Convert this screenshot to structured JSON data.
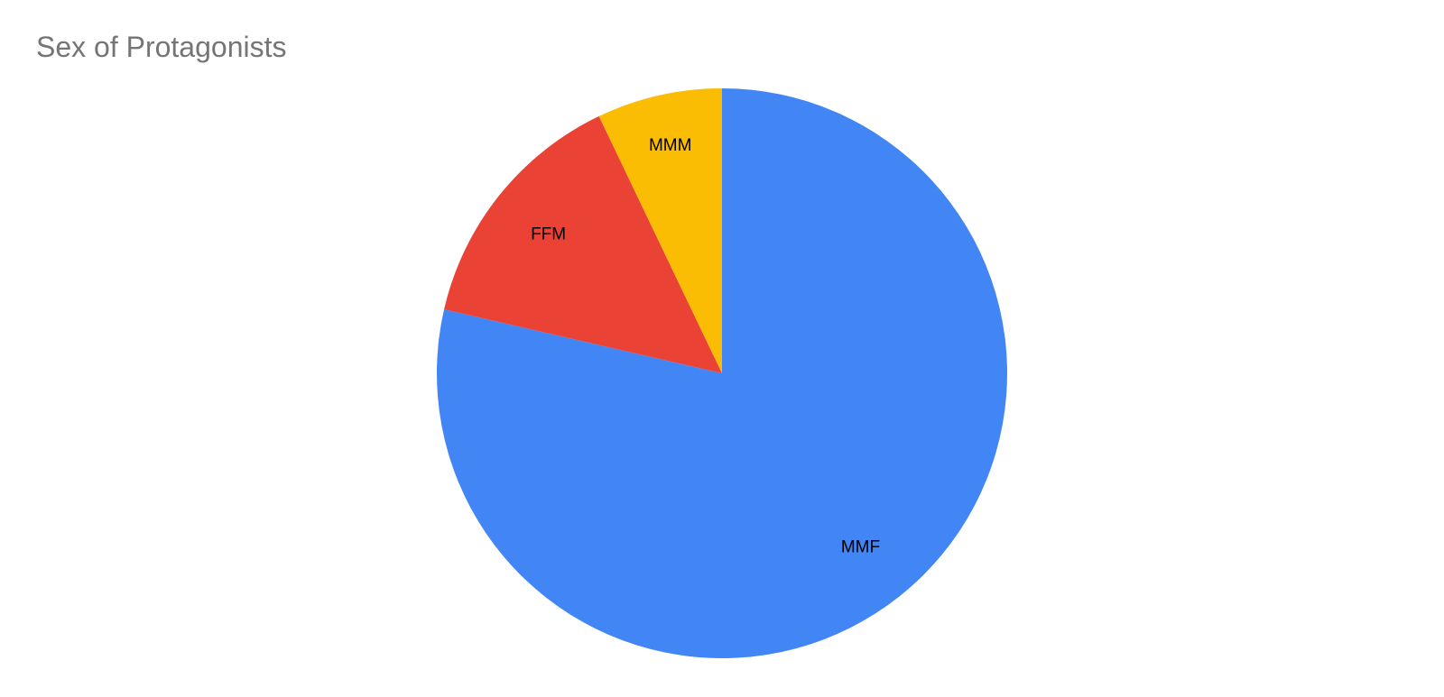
{
  "chart_data": {
    "type": "pie",
    "title": "Sex of Protagonists",
    "slices": [
      {
        "label": "MMF",
        "percent": 78.6,
        "color": "#4285F4"
      },
      {
        "label": "FFM",
        "percent": 14.3,
        "color": "#EA4335"
      },
      {
        "label": "MMM",
        "percent": 7.1,
        "color": "#FBBC04"
      }
    ],
    "start_angle": "12 o'clock",
    "direction": "clockwise",
    "labels_position": "inside-slices",
    "legend_position": "none",
    "title_color": "#757575",
    "label_color": "#000000",
    "background": "#FFFFFF"
  }
}
